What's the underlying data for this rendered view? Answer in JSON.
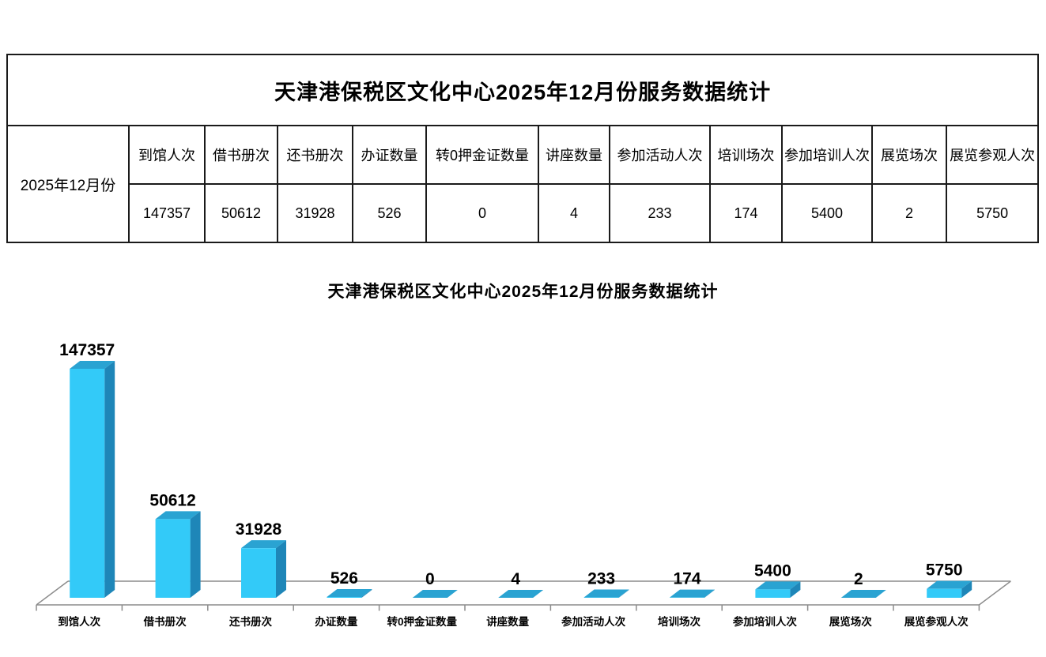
{
  "table": {
    "title": "天津港保税区文化中心2025年12月份服务数据统计",
    "row_header": "2025年12月份",
    "columns": [
      {
        "label": "到馆人次",
        "value": "147357"
      },
      {
        "label": "借书册次",
        "value": "50612"
      },
      {
        "label": "还书册次",
        "value": "31928"
      },
      {
        "label": "办证数量",
        "value": "526"
      },
      {
        "label": "转0押金证数量",
        "value": "0"
      },
      {
        "label": "讲座数量",
        "value": "4"
      },
      {
        "label": "参加活动人次",
        "value": "233"
      },
      {
        "label": "培训场次",
        "value": "174"
      },
      {
        "label": "参加培训人次",
        "value": "5400"
      },
      {
        "label": "展览场次",
        "value": "2"
      },
      {
        "label": "展览参观人次",
        "value": "5750"
      }
    ]
  },
  "chart_data": {
    "type": "bar",
    "style": "3d-column",
    "title": "天津港保税区文化中心2025年12月份服务数据统计",
    "categories": [
      "到馆人次",
      "借书册次",
      "还书册次",
      "办证数量",
      "转0押金证数量",
      "讲座数量",
      "参加活动人次",
      "培训场次",
      "参加培训人次",
      "展览场次",
      "展览参观人次"
    ],
    "values": [
      147357,
      50612,
      31928,
      526,
      0,
      4,
      233,
      174,
      5400,
      2,
      5750
    ],
    "data_labels": true,
    "legend": "none",
    "grid": false,
    "xlabel": "",
    "ylabel": "",
    "ylim": [
      0,
      160000
    ],
    "colors": {
      "bar_front": "#33CAF8",
      "bar_top": "#2AA3D2",
      "bar_side": "#1E86B8",
      "axis_line": "#8C8C8C",
      "label": "#000000"
    }
  }
}
